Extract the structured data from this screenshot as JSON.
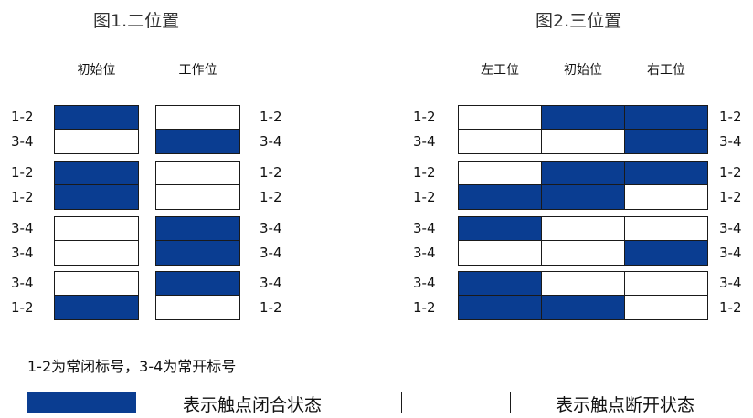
{
  "colors": {
    "closed": "#0a3d91",
    "open": "#ffffff",
    "border": "#1a1a1a"
  },
  "fig1": {
    "title": "图1.二位置",
    "columns": [
      "初始位",
      "工作位"
    ],
    "groups": [
      {
        "rows": [
          {
            "left": "1-2",
            "right": "1-2",
            "states": [
              1,
              0
            ]
          },
          {
            "left": "3-4",
            "right": "3-4",
            "states": [
              0,
              1
            ]
          }
        ]
      },
      {
        "rows": [
          {
            "left": "1-2",
            "right": "1-2",
            "states": [
              1,
              0
            ]
          },
          {
            "left": "1-2",
            "right": "1-2",
            "states": [
              1,
              0
            ]
          }
        ]
      },
      {
        "rows": [
          {
            "left": "3-4",
            "right": "3-4",
            "states": [
              0,
              1
            ]
          },
          {
            "left": "3-4",
            "right": "3-4",
            "states": [
              0,
              1
            ]
          }
        ]
      },
      {
        "rows": [
          {
            "left": "3-4",
            "right": "3-4",
            "states": [
              0,
              1
            ]
          },
          {
            "left": "1-2",
            "right": "1-2",
            "states": [
              1,
              0
            ]
          }
        ]
      }
    ]
  },
  "fig2": {
    "title": "图2.三位置",
    "columns": [
      "左工位",
      "初始位",
      "右工位"
    ],
    "groups": [
      {
        "rows": [
          {
            "left": "1-2",
            "right": "1-2",
            "states": [
              0,
              1,
              1
            ]
          },
          {
            "left": "3-4",
            "right": "3-4",
            "states": [
              0,
              0,
              1
            ]
          }
        ]
      },
      {
        "rows": [
          {
            "left": "1-2",
            "right": "1-2",
            "states": [
              0,
              1,
              1
            ]
          },
          {
            "left": "1-2",
            "right": "1-2",
            "states": [
              1,
              1,
              0
            ]
          }
        ]
      },
      {
        "rows": [
          {
            "left": "3-4",
            "right": "3-4",
            "states": [
              1,
              0,
              0
            ]
          },
          {
            "left": "3-4",
            "right": "3-4",
            "states": [
              0,
              0,
              1
            ]
          }
        ]
      },
      {
        "rows": [
          {
            "left": "3-4",
            "right": "3-4",
            "states": [
              1,
              0,
              0
            ]
          },
          {
            "left": "1-2",
            "right": "1-2",
            "states": [
              1,
              1,
              0
            ]
          }
        ]
      }
    ]
  },
  "note": "1-2为常闭标号，3-4为常开标号",
  "legend": {
    "closed_label": "表示触点闭合状态",
    "open_label": "表示触点断开状态"
  }
}
